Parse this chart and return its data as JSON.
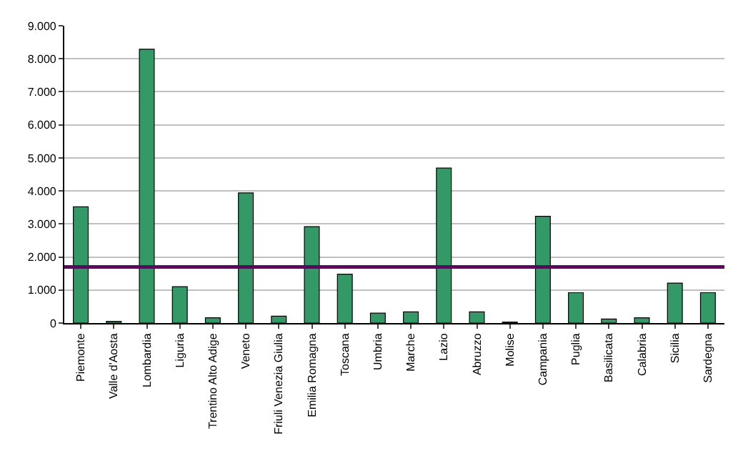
{
  "chart_data": {
    "type": "bar",
    "categories": [
      "Piemonte",
      "Valle d'Aosta",
      "Lombardia",
      "Liguria",
      "Trentino Alto Adige",
      "Veneto",
      "Friuli Venezia Giulia",
      "Emilia Romagna",
      "Toscana",
      "Umbria",
      "Marche",
      "Lazio",
      "Abruzzo",
      "Molise",
      "Campania",
      "Puglia",
      "Basilicata",
      "Calabria",
      "Sicilia",
      "Sardegna"
    ],
    "values": [
      3520,
      50,
      8290,
      1100,
      160,
      3940,
      210,
      2920,
      1480,
      300,
      340,
      4690,
      340,
      30,
      3230,
      920,
      120,
      160,
      1210,
      920
    ],
    "color": "#339966",
    "ylim": [
      0,
      9000
    ],
    "yticks": [
      0,
      {
        "value": 1000,
        "label": "1.000"
      },
      {
        "value": 2000,
        "label": "2.000"
      },
      {
        "value": 3000,
        "label": "3.000"
      },
      {
        "value": 4000,
        "label": "4.000"
      },
      {
        "value": 5000,
        "label": "5.000"
      },
      {
        "value": 6000,
        "label": "6.000"
      },
      {
        "value": 7000,
        "label": "7.000"
      },
      {
        "value": 8000,
        "label": "8.000"
      },
      {
        "value": 9000,
        "label": "9.000"
      }
    ],
    "grid": "y",
    "ref_lines": [
      {
        "axis": "y",
        "value": 1700,
        "color": "#660066"
      }
    ]
  }
}
